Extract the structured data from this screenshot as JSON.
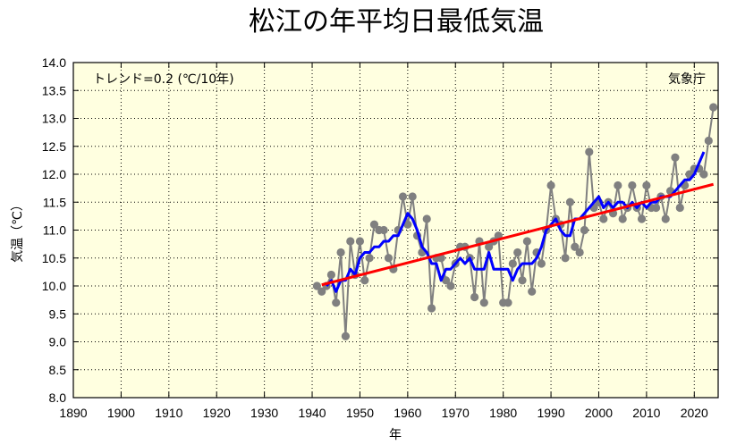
{
  "chart_data": {
    "type": "line",
    "title": "松江の年平均日最低気温",
    "xlabel": "年",
    "ylabel": "気温（℃）",
    "xlim": [
      1890,
      2025
    ],
    "ylim": [
      8.0,
      14.0
    ],
    "x_ticks": [
      1890,
      1900,
      1910,
      1920,
      1930,
      1940,
      1950,
      1960,
      1970,
      1980,
      1990,
      2000,
      2010,
      2020
    ],
    "y_ticks": [
      "8.0",
      "8.5",
      "9.0",
      "9.5",
      "10.0",
      "10.5",
      "11.0",
      "11.5",
      "12.0",
      "12.5",
      "13.0",
      "13.5",
      "14.0"
    ],
    "grid": true,
    "trend_label": "トレンド=0.2 (℃/10年)",
    "source": "気象庁",
    "colors": {
      "background": "#ffffe0",
      "annual": "#808080",
      "moving_average": "#0000ff",
      "trend": "#ff0000"
    },
    "series": [
      {
        "role": "annual",
        "x": [
          1941,
          1942,
          1943,
          1944,
          1945,
          1946,
          1947,
          1948,
          1949,
          1950,
          1951,
          1952,
          1953,
          1954,
          1955,
          1956,
          1957,
          1958,
          1959,
          1960,
          1961,
          1962,
          1963,
          1964,
          1965,
          1966,
          1967,
          1968,
          1969,
          1970,
          1971,
          1972,
          1973,
          1974,
          1975,
          1976,
          1977,
          1978,
          1979,
          1980,
          1981,
          1982,
          1983,
          1984,
          1985,
          1986,
          1987,
          1988,
          1989,
          1990,
          1991,
          1992,
          1993,
          1994,
          1995,
          1996,
          1997,
          1998,
          1999,
          2000,
          2001,
          2002,
          2003,
          2004,
          2005,
          2006,
          2007,
          2008,
          2009,
          2010,
          2011,
          2012,
          2013,
          2014,
          2015,
          2016,
          2017,
          2018,
          2019,
          2020,
          2021,
          2022,
          2023,
          2024
        ],
        "values": [
          10.0,
          9.9,
          10.0,
          10.2,
          9.7,
          10.6,
          9.1,
          10.8,
          10.2,
          10.8,
          10.1,
          10.5,
          11.1,
          11.0,
          11.0,
          10.5,
          10.3,
          11.0,
          11.6,
          11.1,
          11.6,
          10.9,
          10.6,
          11.2,
          9.6,
          10.5,
          10.5,
          10.1,
          10.0,
          10.4,
          10.7,
          10.7,
          10.5,
          9.8,
          10.8,
          9.7,
          10.7,
          10.8,
          10.9,
          9.7,
          9.7,
          10.4,
          10.6,
          10.1,
          10.8,
          9.9,
          10.6,
          10.4,
          11.0,
          11.8,
          11.2,
          11.1,
          10.5,
          11.5,
          10.7,
          10.6,
          11.0,
          12.4,
          11.4,
          11.5,
          11.2,
          11.5,
          11.3,
          11.8,
          11.2,
          11.4,
          11.8,
          11.4,
          11.2,
          11.8,
          11.4,
          11.4,
          11.6,
          11.2,
          11.7,
          12.3,
          11.4,
          11.8,
          12.0,
          12.1,
          12.1,
          12.0,
          12.6,
          13.2
        ]
      },
      {
        "role": "moving_average",
        "x": [
          1943,
          1944,
          1945,
          1946,
          1947,
          1948,
          1949,
          1950,
          1951,
          1952,
          1953,
          1954,
          1955,
          1956,
          1957,
          1958,
          1959,
          1960,
          1961,
          1962,
          1963,
          1964,
          1965,
          1966,
          1967,
          1968,
          1969,
          1970,
          1971,
          1972,
          1973,
          1974,
          1975,
          1976,
          1977,
          1978,
          1979,
          1980,
          1981,
          1982,
          1983,
          1984,
          1985,
          1986,
          1987,
          1988,
          1989,
          1990,
          1991,
          1992,
          1993,
          1994,
          1995,
          1996,
          1997,
          1998,
          1999,
          2000,
          2001,
          2002,
          2003,
          2004,
          2005,
          2006,
          2007,
          2008,
          2009,
          2010,
          2011,
          2012,
          2013,
          2014,
          2015,
          2016,
          2017,
          2018,
          2019,
          2020,
          2021,
          2022
        ],
        "values": [
          10.0,
          10.1,
          9.9,
          10.1,
          10.1,
          10.3,
          10.2,
          10.5,
          10.6,
          10.6,
          10.7,
          10.7,
          10.8,
          10.8,
          10.9,
          10.9,
          11.1,
          11.3,
          11.2,
          11.0,
          10.7,
          10.6,
          10.4,
          10.4,
          10.1,
          10.3,
          10.3,
          10.4,
          10.5,
          10.4,
          10.5,
          10.3,
          10.3,
          10.3,
          10.6,
          10.3,
          10.3,
          10.3,
          10.3,
          10.1,
          10.3,
          10.4,
          10.4,
          10.4,
          10.5,
          10.7,
          11.0,
          11.1,
          11.2,
          11.0,
          10.9,
          10.9,
          11.2,
          11.2,
          11.3,
          11.4,
          11.5,
          11.6,
          11.4,
          11.5,
          11.4,
          11.5,
          11.5,
          11.4,
          11.5,
          11.4,
          11.5,
          11.4,
          11.5,
          11.5,
          11.6,
          11.6,
          11.6,
          11.7,
          11.8,
          11.9,
          11.9,
          12.0,
          12.2,
          12.4
        ]
      },
      {
        "role": "trend",
        "x": [
          1942,
          2024
        ],
        "values": [
          10.02,
          11.82
        ]
      }
    ]
  }
}
